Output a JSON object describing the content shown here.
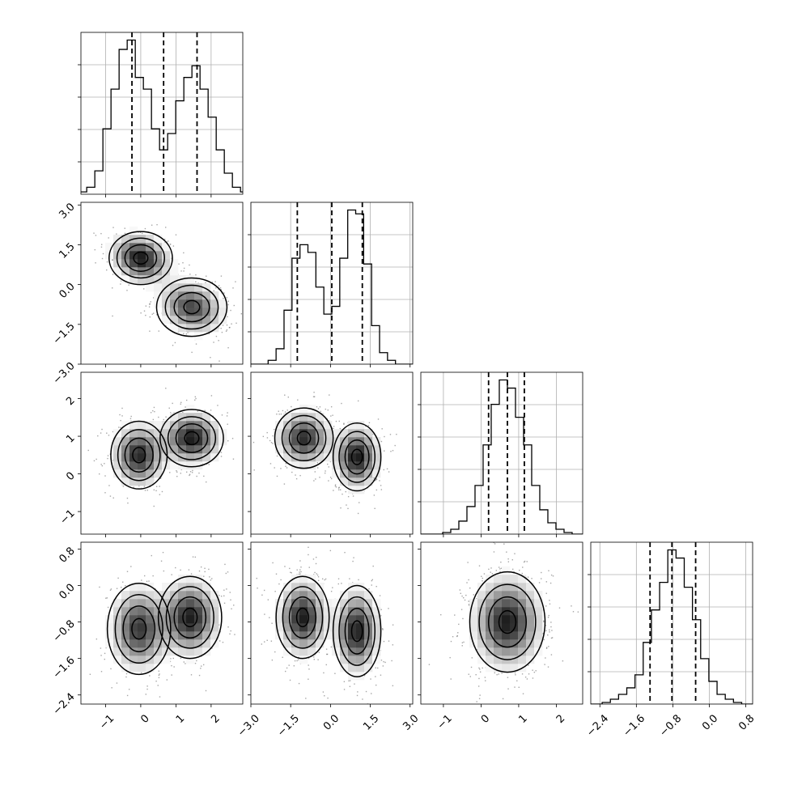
{
  "chart_data": {
    "type": "corner",
    "description_note": "",
    "variables": [
      {
        "range": [
          -1.7,
          2.9
        ],
        "ticks": [
          -1,
          0,
          1,
          2
        ],
        "tick_labels": [
          "−1",
          "0",
          "1",
          "2"
        ],
        "quantiles": [
          -0.25,
          0.65,
          1.6
        ],
        "hist_bin_width": 0.23,
        "hist_counts": [
          1,
          3,
          10,
          28,
          45,
          62,
          66,
          50,
          45,
          28,
          19,
          26,
          40,
          50,
          55,
          45,
          33,
          19,
          9,
          3,
          1
        ]
      },
      {
        "range": [
          -3.0,
          3.1
        ],
        "ticks": [
          -3.0,
          -1.5,
          0.0,
          1.5,
          3.0
        ],
        "tick_labels": [
          "−3.0",
          "−1.5",
          "0.0",
          "1.5",
          "3.0"
        ],
        "quantiles": [
          -1.25,
          0.05,
          1.2
        ],
        "hist_bin_width": 0.3,
        "hist_counts": [
          2,
          8,
          28,
          55,
          62,
          58,
          40,
          26,
          30,
          55,
          80,
          78,
          52,
          20,
          6,
          2
        ]
      },
      {
        "range": [
          -1.6,
          2.7
        ],
        "ticks": [
          -1,
          0,
          1,
          2
        ],
        "tick_labels": [
          "−1",
          "0",
          "1",
          "2"
        ],
        "quantiles": [
          0.2,
          0.7,
          1.15
        ],
        "hist_bin_width": 0.215,
        "hist_counts": [
          1,
          3,
          8,
          17,
          30,
          55,
          80,
          95,
          90,
          72,
          55,
          30,
          15,
          7,
          3,
          1
        ]
      },
      {
        "range": [
          -2.6,
          0.95
        ],
        "ticks": [
          -2.4,
          -1.6,
          -0.8,
          0.0,
          0.8
        ],
        "tick_labels": [
          "−2.4",
          "−1.6",
          "−0.8",
          "0.0",
          "0.8"
        ],
        "quantiles": [
          -1.3,
          -0.82,
          -0.3
        ],
        "hist_bin_width": 0.18,
        "hist_counts": [
          1,
          3,
          6,
          10,
          18,
          38,
          58,
          75,
          95,
          90,
          72,
          52,
          28,
          14,
          6,
          3,
          1
        ]
      }
    ],
    "pairs": [
      {
        "row": 1,
        "col": 0,
        "modes": [
          {
            "center": [
              0.0,
              1.0
            ],
            "sigma": [
              0.45,
              0.5
            ],
            "rho": -0.2,
            "weight": 0.5
          },
          {
            "center": [
              1.45,
              -0.85
            ],
            "sigma": [
              0.5,
              0.55
            ],
            "rho": -0.2,
            "weight": 0.5
          }
        ]
      },
      {
        "row": 2,
        "col": 0,
        "modes": [
          {
            "center": [
              -0.05,
              0.5
            ],
            "sigma": [
              0.4,
              0.45
            ],
            "rho": 0.0,
            "weight": 0.5
          },
          {
            "center": [
              1.45,
              0.95
            ],
            "sigma": [
              0.45,
              0.38
            ],
            "rho": 0.0,
            "weight": 0.5
          }
        ]
      },
      {
        "row": 2,
        "col": 1,
        "modes": [
          {
            "center": [
              -1.0,
              0.95
            ],
            "sigma": [
              0.55,
              0.4
            ],
            "rho": 0.0,
            "weight": 0.5
          },
          {
            "center": [
              1.0,
              0.45
            ],
            "sigma": [
              0.45,
              0.45
            ],
            "rho": 0.0,
            "weight": 0.5
          }
        ]
      },
      {
        "row": 3,
        "col": 0,
        "modes": [
          {
            "center": [
              -0.05,
              -0.95
            ],
            "sigma": [
              0.45,
              0.5
            ],
            "rho": 0.0,
            "weight": 0.5
          },
          {
            "center": [
              1.4,
              -0.7
            ],
            "sigma": [
              0.45,
              0.45
            ],
            "rho": 0.0,
            "weight": 0.5
          }
        ]
      },
      {
        "row": 3,
        "col": 1,
        "modes": [
          {
            "center": [
              -1.05,
              -0.7
            ],
            "sigma": [
              0.5,
              0.45
            ],
            "rho": 0.0,
            "weight": 0.5
          },
          {
            "center": [
              1.0,
              -1.0
            ],
            "sigma": [
              0.45,
              0.5
            ],
            "rho": 0.0,
            "weight": 0.5
          }
        ]
      },
      {
        "row": 3,
        "col": 2,
        "modes": [
          {
            "center": [
              0.7,
              -0.8
            ],
            "sigma": [
              0.5,
              0.55
            ],
            "rho": 0.0,
            "weight": 1.0
          }
        ]
      }
    ],
    "contour_levels": [
      "1-sigma",
      "1.5-sigma",
      "2-sigma"
    ],
    "grid": true,
    "scatter_points": true
  }
}
